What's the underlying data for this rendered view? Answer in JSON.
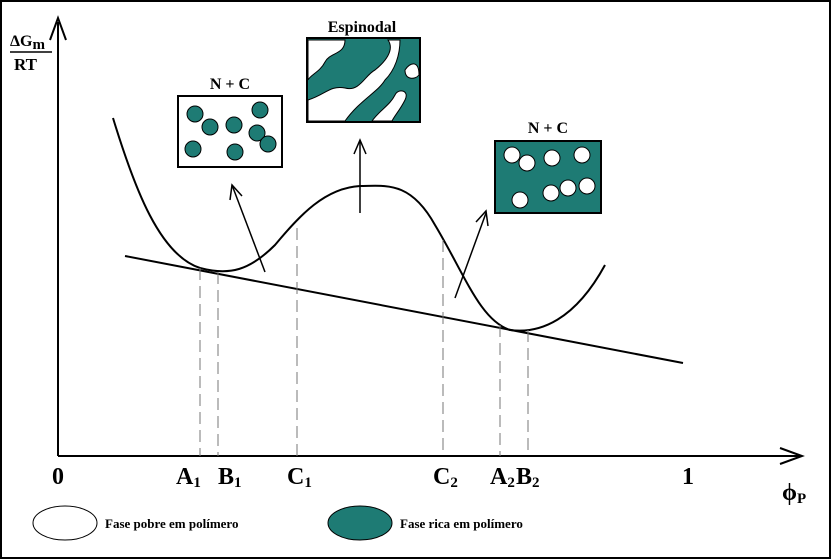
{
  "y_label": {
    "main": "ΔG",
    "sub": "m",
    "denominator": "RT"
  },
  "insets": {
    "left": {
      "label": "N + C"
    },
    "center": {
      "label": "Espinodal"
    },
    "right": {
      "label": "N + C"
    }
  },
  "x_labels": {
    "zero": "0",
    "one": "1",
    "A1": {
      "main": "A",
      "sub": "1"
    },
    "B1": {
      "main": "B",
      "sub": "1"
    },
    "C1": {
      "main": "C",
      "sub": "1"
    },
    "C2": {
      "main": "C",
      "sub": "2"
    },
    "A2": {
      "main": "A",
      "sub": "2"
    },
    "B2": {
      "main": "B",
      "sub": "2"
    }
  },
  "x_axis_label": {
    "main": "ϕ",
    "sub": "P"
  },
  "legend": {
    "poor": "Fase pobre em polímero",
    "rich": "Fase rica em polímero"
  }
}
